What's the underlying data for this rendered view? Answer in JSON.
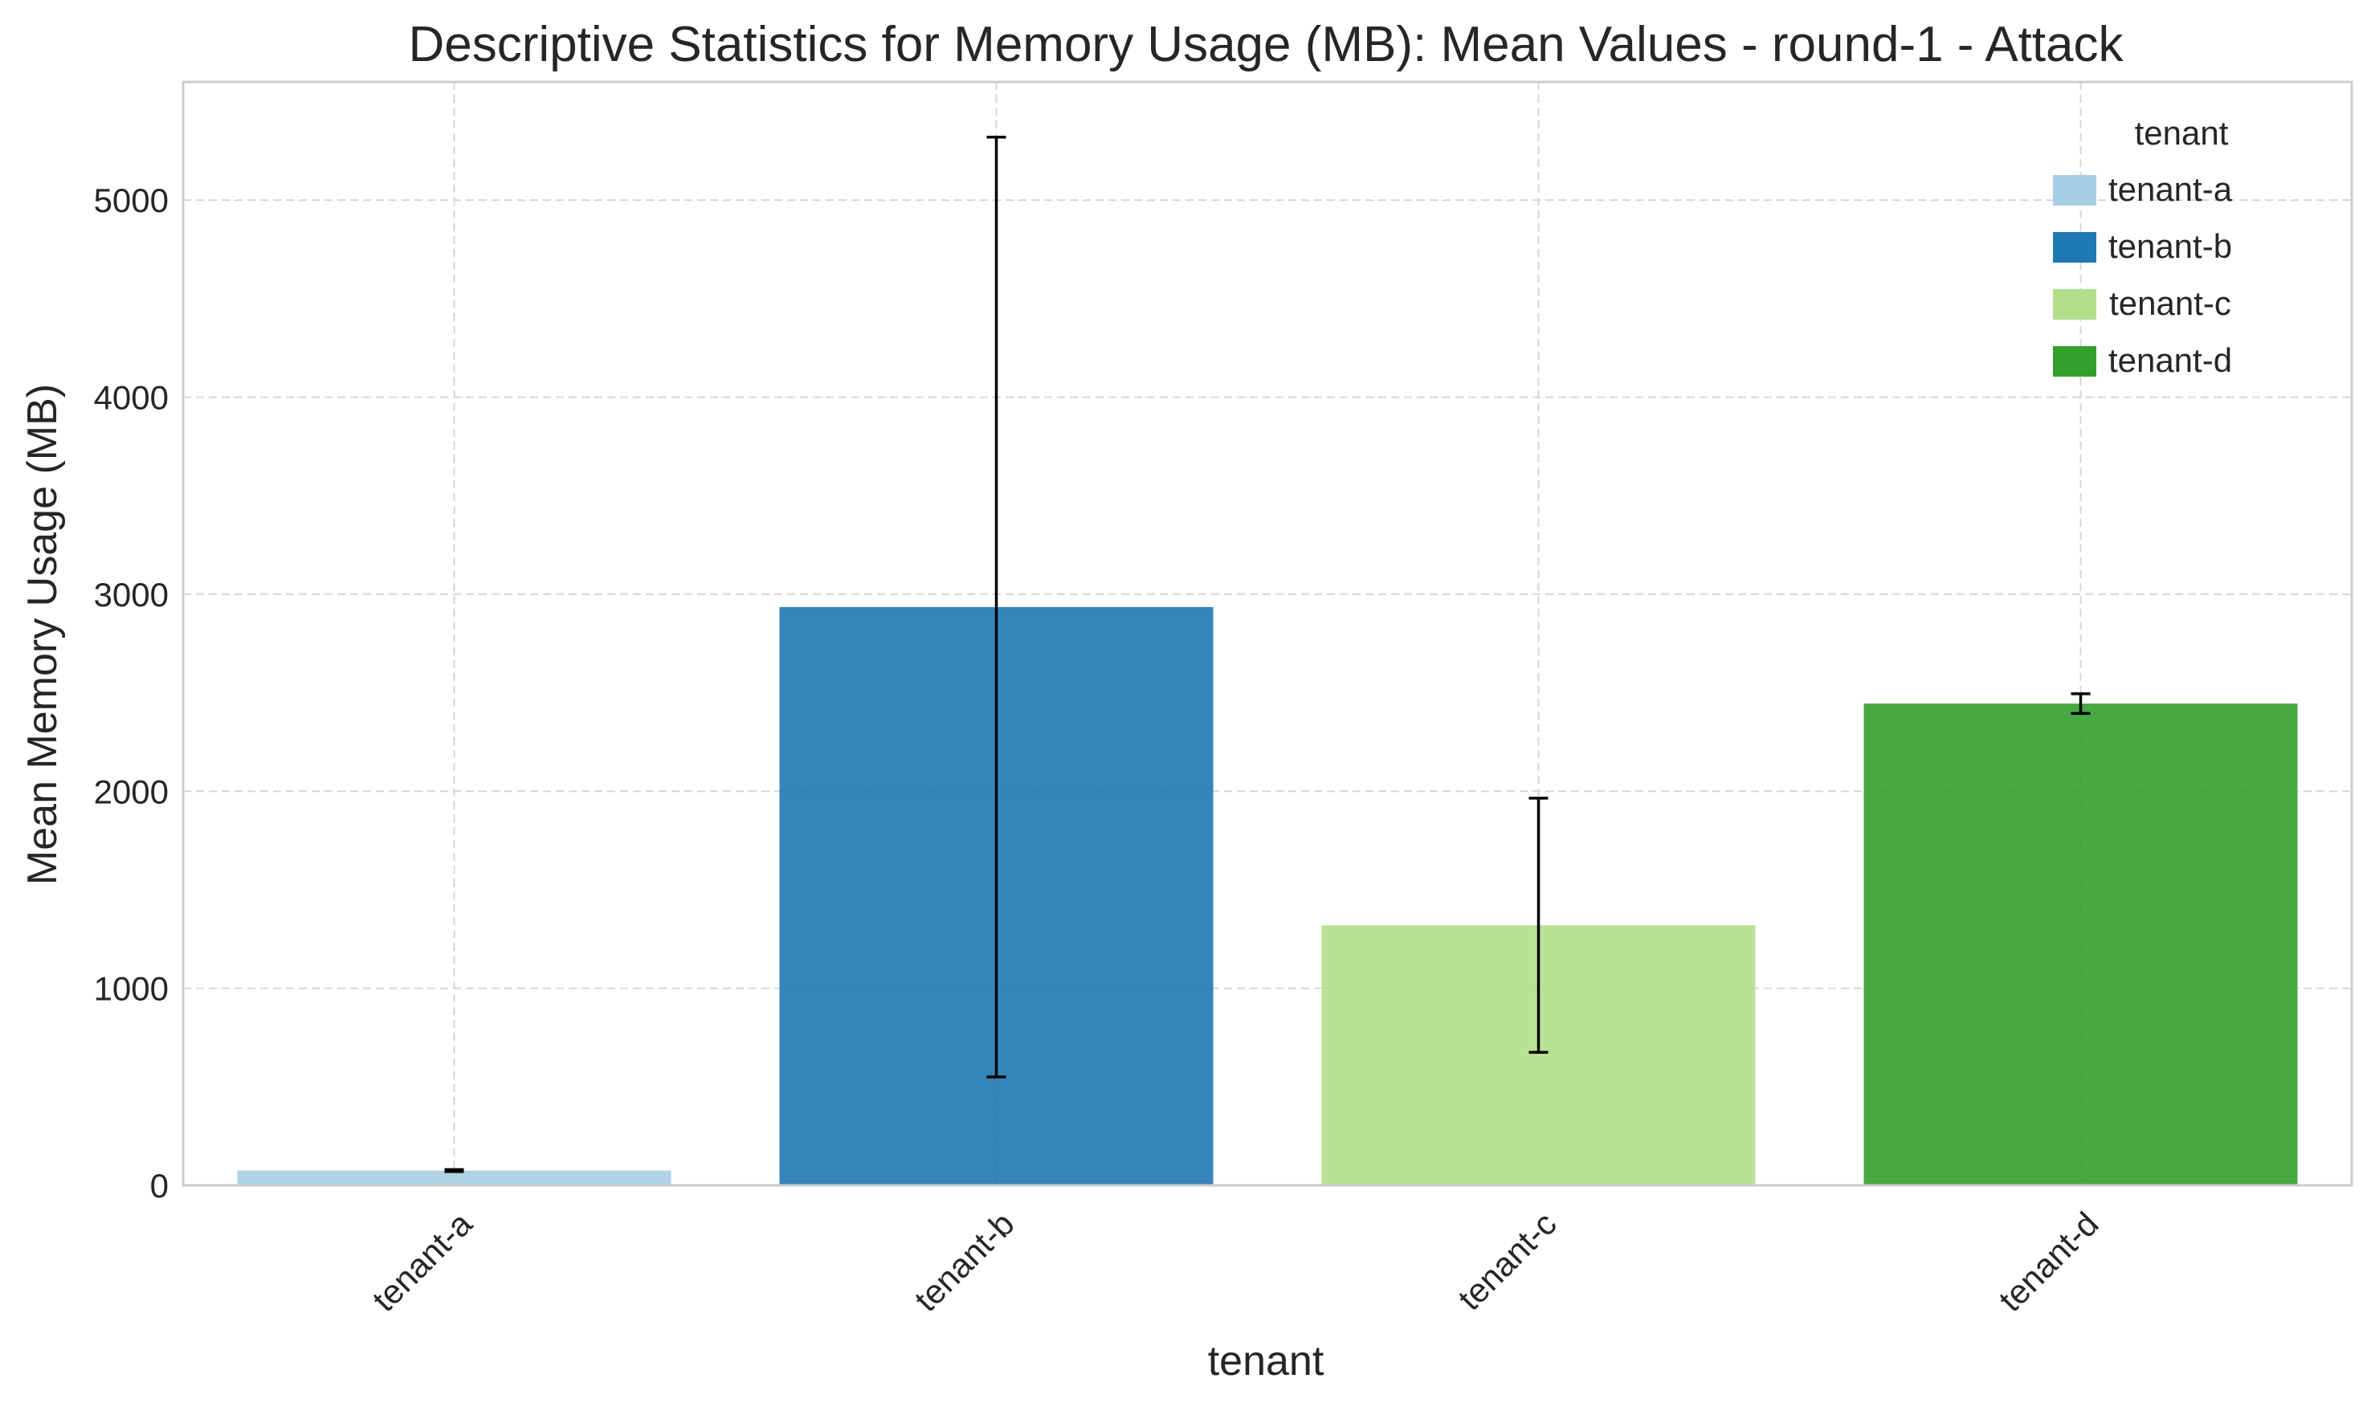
{
  "chart_data": {
    "type": "bar",
    "title": "Descriptive Statistics for Memory Usage (MB): Mean Values - round-1 - Attack",
    "xlabel": "tenant",
    "ylabel": "Mean Memory Usage (MB)",
    "categories": [
      "tenant-a",
      "tenant-b",
      "tenant-c",
      "tenant-d"
    ],
    "values": [
      75,
      2935,
      1320,
      2445
    ],
    "error": [
      5,
      2385,
      645,
      50
    ],
    "colors": [
      "#a6cee3",
      "#1f78b4",
      "#b2df8a",
      "#33a02c"
    ],
    "ylim": [
      0,
      5600
    ],
    "yticks": [
      0,
      1000,
      2000,
      3000,
      4000,
      5000
    ],
    "grid": true,
    "legend": {
      "title": "tenant",
      "placement": "top-right",
      "entries": [
        "tenant-a",
        "tenant-b",
        "tenant-c",
        "tenant-d"
      ]
    }
  }
}
